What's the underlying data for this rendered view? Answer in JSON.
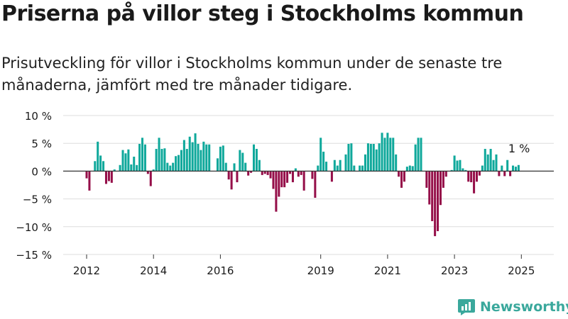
{
  "title": "Priserna på villor steg i Stockholms kommun",
  "subtitle": "Prisutveckling för villor i Stockholms kommun under de senaste tre månaderna, jämfört med tre månader tidigare.",
  "brand": "Newsworthy",
  "colors": {
    "positive": "#0fa89b",
    "negative": "#950f49",
    "grid": "#dddddd",
    "zero": "#333333",
    "text": "#1a1a1a"
  },
  "chart_data": {
    "type": "bar",
    "ylim": [
      -15,
      10
    ],
    "yticks": [
      10,
      5,
      0,
      -5,
      -10,
      -15
    ],
    "ytick_labels": [
      "10 %",
      "5 %",
      "0 %",
      "−5 %",
      "−10 %",
      "−15 %"
    ],
    "xticks": [
      2012,
      2014,
      2016,
      2019,
      2021,
      2023,
      2025
    ],
    "xtick_labels": [
      "2012",
      "2014",
      "2016",
      "2019",
      "2021",
      "2023",
      "2025"
    ],
    "start_date": "2011-12",
    "annotation": {
      "text": "1 %"
    },
    "values": [
      0,
      -1.3,
      -3.5,
      0,
      1.8,
      5.3,
      2.8,
      1.8,
      -2.3,
      -1.8,
      -2.1,
      0.3,
      0,
      1.1,
      3.8,
      3.2,
      3.9,
      1.2,
      2.6,
      1.1,
      4.9,
      6.0,
      4.8,
      -0.5,
      -2.7,
      0.3,
      4.0,
      6.0,
      4.0,
      4.1,
      1.5,
      1.0,
      1.5,
      2.7,
      2.9,
      3.8,
      5.6,
      4.0,
      6.2,
      5.2,
      6.8,
      4.9,
      3.8,
      5.3,
      4.8,
      4.8,
      0,
      0,
      2.3,
      4.4,
      4.6,
      1.5,
      -1.5,
      -3.3,
      1.4,
      -2.0,
      3.8,
      3.3,
      1.5,
      -0.8,
      -0.3,
      4.8,
      4.0,
      2.0,
      -0.7,
      -0.5,
      -0.7,
      -1.3,
      -3.2,
      -7.3,
      -4.6,
      -2.9,
      -2.9,
      -2.1,
      -0.5,
      -2.0,
      0.5,
      -1.0,
      -0.7,
      -3.5,
      0,
      0,
      -1.4,
      -4.8,
      1.0,
      6.0,
      3.5,
      1.7,
      0,
      -1.9,
      2.0,
      1.0,
      2.0,
      0,
      3.0,
      4.9,
      5.0,
      1.0,
      0,
      1.0,
      1.0,
      3.0,
      5.0,
      4.9,
      4.9,
      3.9,
      5.0,
      6.9,
      6.0,
      6.9,
      6.0,
      6.0,
      3.0,
      -1.0,
      -3.0,
      -1.9,
      0.8,
      1.0,
      0.9,
      4.8,
      6.0,
      6.0,
      0,
      -3.0,
      -6.0,
      -9.0,
      -11.7,
      -10.8,
      -6.1,
      -3.0,
      -1.0,
      0,
      0.2,
      2.8,
      1.9,
      2.0,
      0.5,
      0.2,
      -1.9,
      -2.0,
      -4.0,
      -1.9,
      -0.8,
      1.0,
      4.0,
      3.0,
      4.0,
      2.0,
      3.0,
      -0.9,
      1.0,
      -0.9,
      2.0,
      -0.9,
      1.0,
      0.8,
      1.1
    ]
  }
}
